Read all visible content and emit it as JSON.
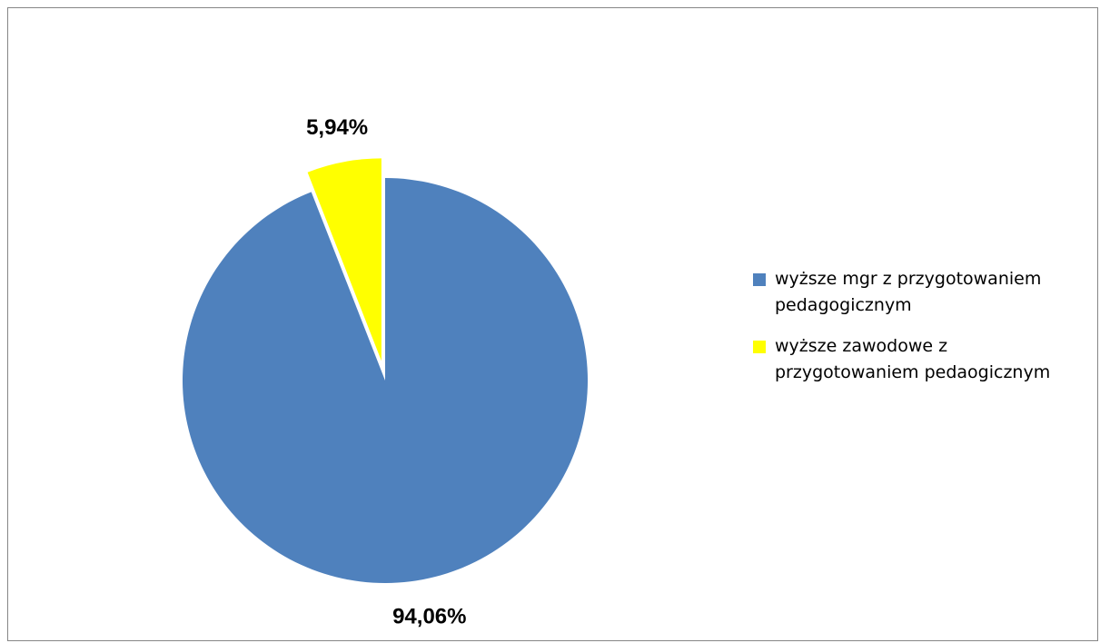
{
  "chart_data": {
    "type": "pie",
    "title": "",
    "slices": [
      {
        "label": "wyższe mgr z przygotowaniem pedagogicznym",
        "value": 94.06,
        "display": "94,06%",
        "color": "#4F81BD",
        "exploded": false
      },
      {
        "label": "wyższe zawodowe z przygotowaniem pedaogicznym",
        "value": 5.94,
        "display": "5,94%",
        "color": "#FFFF00",
        "exploded": true
      }
    ],
    "legend": {
      "position": "right"
    }
  }
}
